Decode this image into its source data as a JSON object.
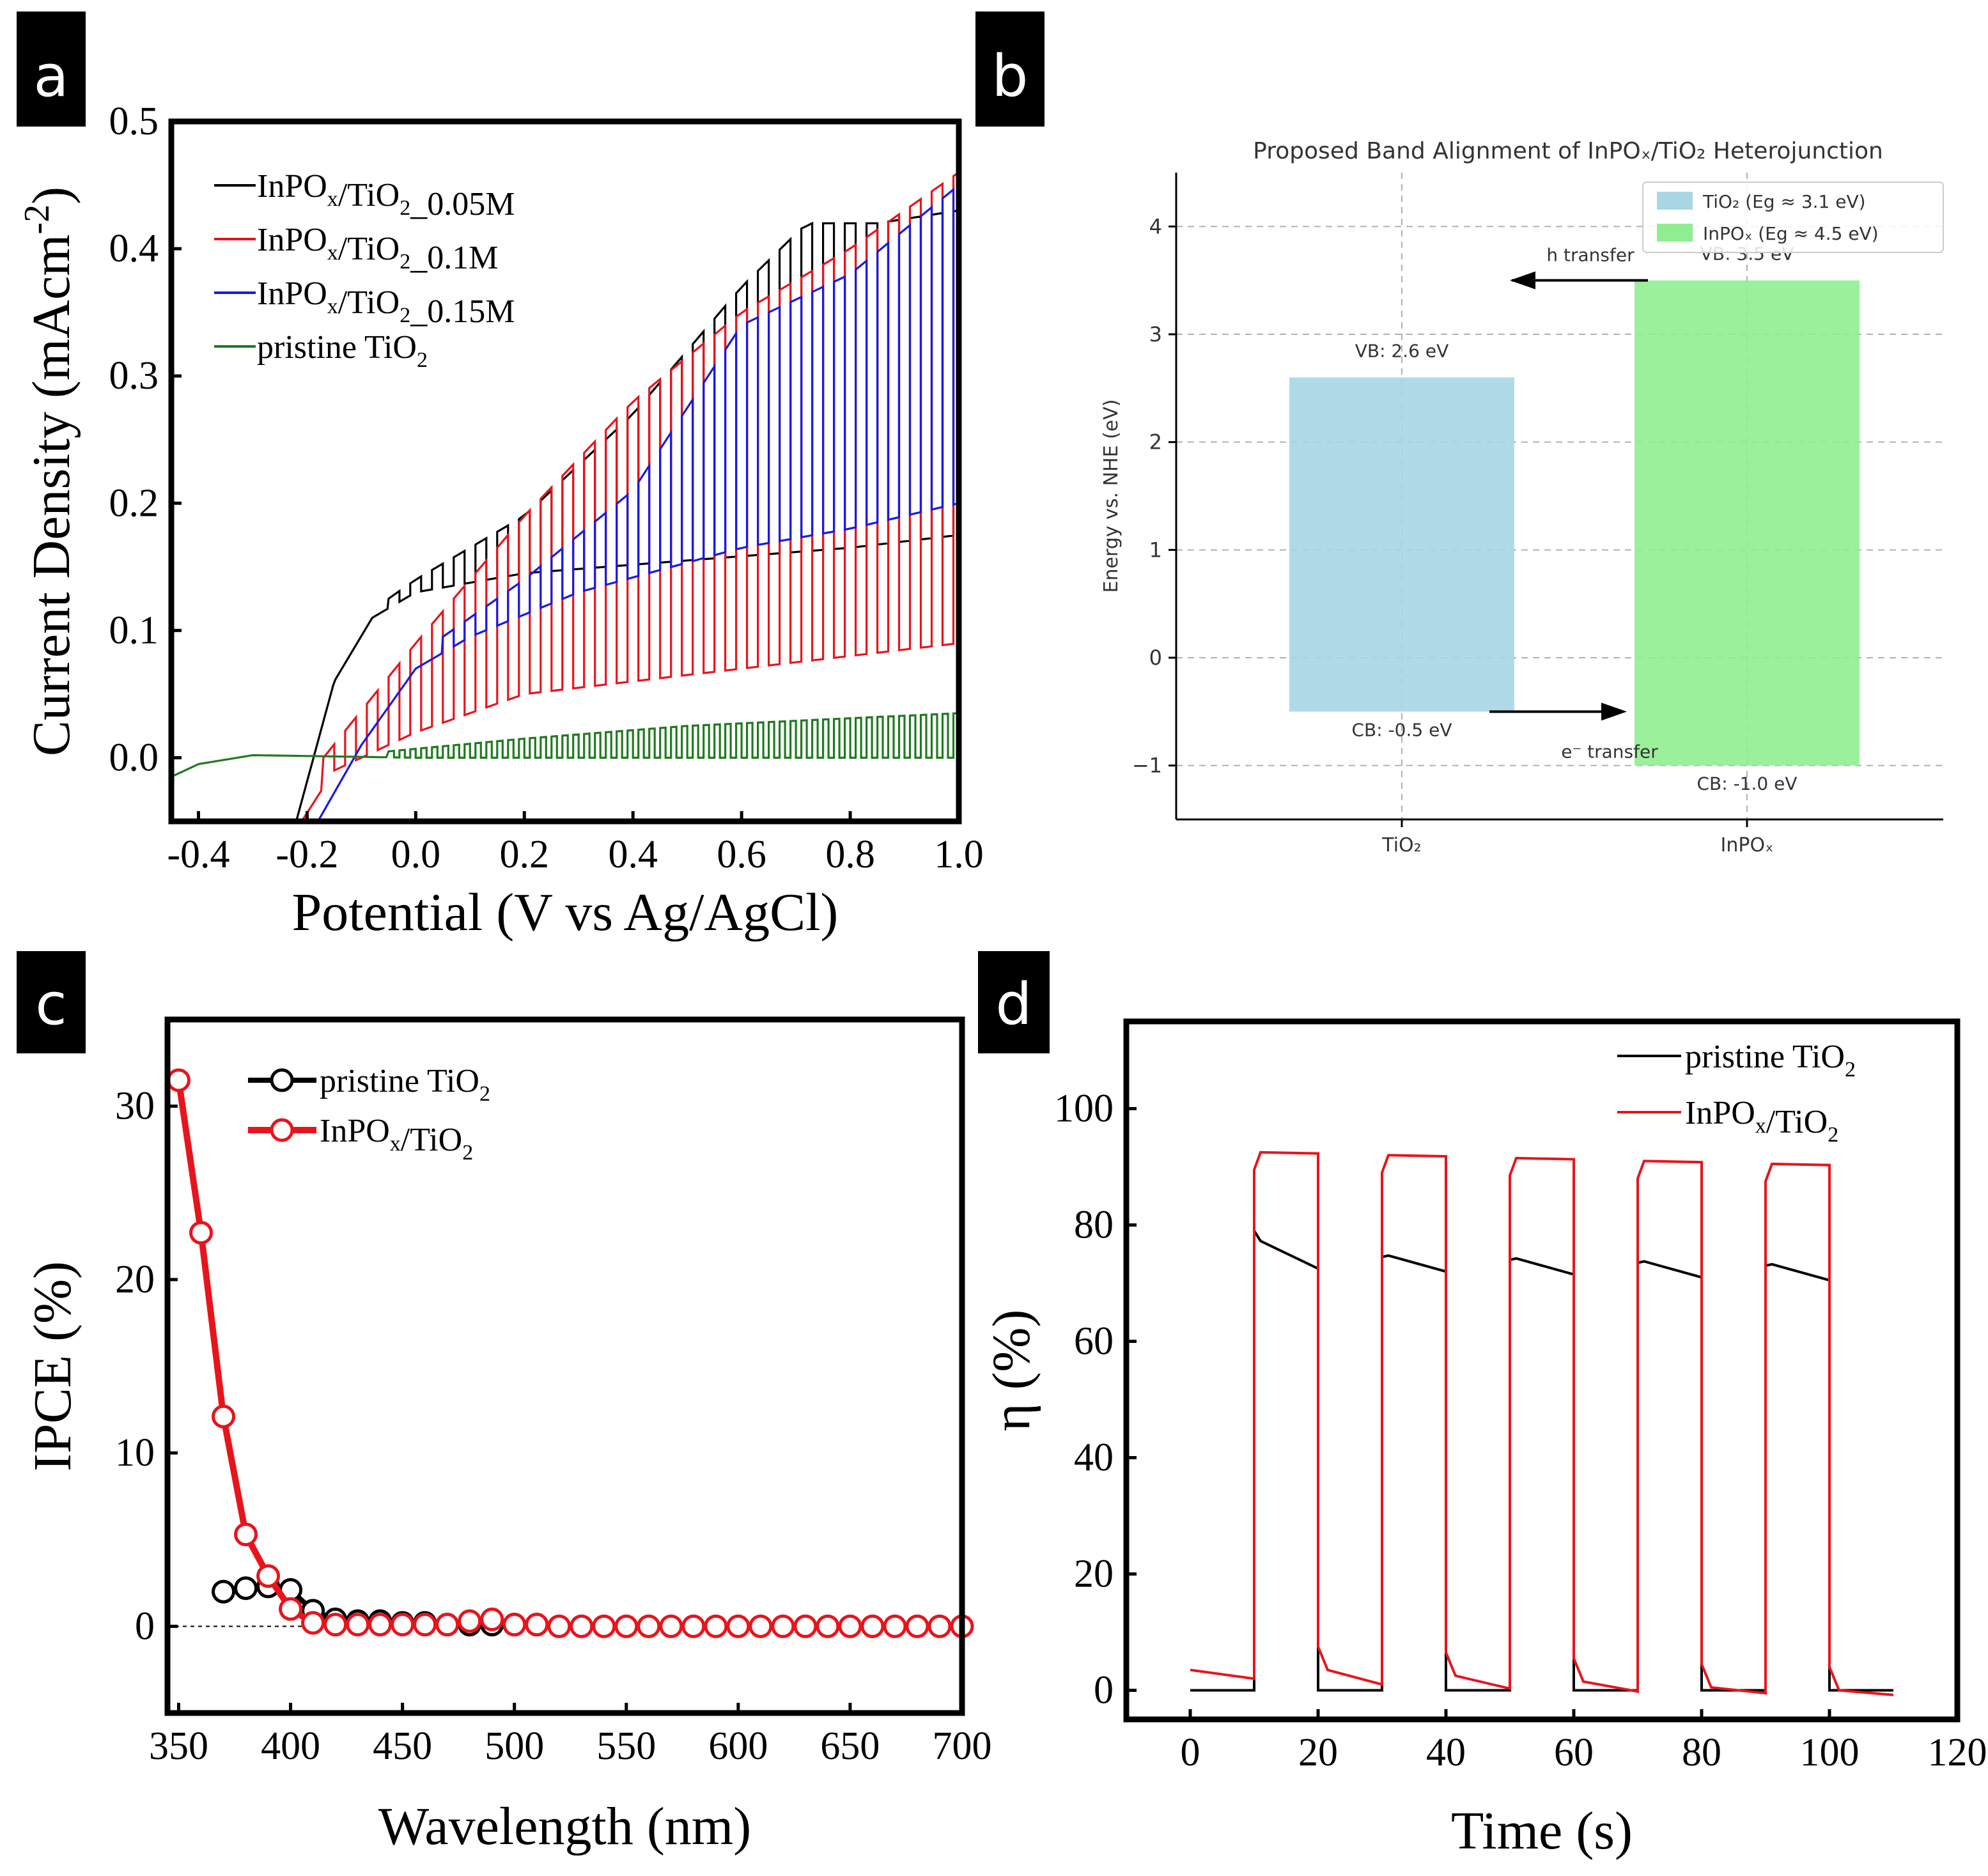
{
  "colors": {
    "black": "#000000",
    "red": "#e8141c",
    "blue": "#1a1ae0",
    "green": "#1f7a1f",
    "tio2_box": "#a9d6e5",
    "inpox_box": "#90ee90",
    "grid": "#b0b0b0",
    "panel_bg": "#ffffff"
  },
  "panel_labels": {
    "a": "a",
    "b": "b",
    "c": "c",
    "d": "d"
  },
  "chart_data": [
    {
      "panel": "a",
      "type": "line",
      "xlabel": "Potential (V vs Ag/AgCl)",
      "ylabel": "Current Density (mAcm",
      "ylabel_sup": "-2",
      "ylabel_close": ")",
      "xlim": [
        -0.45,
        1.0
      ],
      "ylim": [
        -0.05,
        0.5
      ],
      "xticks": [
        -0.4,
        -0.2,
        0.0,
        0.2,
        0.4,
        0.6,
        0.8,
        1.0
      ],
      "xtick_labels": [
        "-0.4",
        "-0.2",
        "0.0",
        "0.2",
        "0.4",
        "0.6",
        "0.8",
        "1.0"
      ],
      "yticks": [
        0.0,
        0.1,
        0.2,
        0.3,
        0.4,
        0.5
      ],
      "ytick_labels": [
        "0.0",
        "0.1",
        "0.2",
        "0.3",
        "0.4",
        "0.5"
      ],
      "legend_position": "top-left",
      "series": [
        {
          "name": "InPOx/TiO2_0.05M",
          "label_main": "InPO",
          "label_sub1": "x",
          "label_mid": "/TiO",
          "label_sub2": "2",
          "label_tail": "_0.05M",
          "color": "black",
          "chopped": true,
          "x_start": -0.22,
          "x_chop_start": -0.05,
          "x_end": 1.0,
          "chop_period": 0.04,
          "dark": [
            [
              -0.22,
              -0.05
            ],
            [
              -0.15,
              0.06
            ],
            [
              -0.08,
              0.11
            ],
            [
              0.0,
              0.13
            ],
            [
              0.2,
              0.145
            ],
            [
              0.5,
              0.155
            ],
            [
              0.8,
              0.165
            ],
            [
              1.0,
              0.175
            ]
          ],
          "light": [
            [
              -0.05,
              0.125
            ],
            [
              0.0,
              0.14
            ],
            [
              0.2,
              0.19
            ],
            [
              0.4,
              0.27
            ],
            [
              0.6,
              0.37
            ],
            [
              0.72,
              0.42
            ],
            [
              0.85,
              0.42
            ],
            [
              1.0,
              0.43
            ]
          ]
        },
        {
          "name": "InPOx/TiO2_0.1M",
          "label_main": "InPO",
          "label_sub1": "x",
          "label_mid": "/TiO",
          "label_sub2": "2",
          "label_tail": "_0.1M",
          "color": "red",
          "chopped": true,
          "x_start": -0.21,
          "x_chop_start": -0.17,
          "x_end": 1.0,
          "chop_period": 0.04,
          "dark": [
            [
              -0.21,
              -0.05
            ],
            [
              -0.15,
              -0.01
            ],
            [
              0.0,
              0.02
            ],
            [
              0.2,
              0.05
            ],
            [
              0.5,
              0.065
            ],
            [
              0.8,
              0.08
            ],
            [
              1.0,
              0.09
            ]
          ],
          "light": [
            [
              -0.17,
              0.0
            ],
            [
              0.0,
              0.09
            ],
            [
              0.2,
              0.19
            ],
            [
              0.4,
              0.28
            ],
            [
              0.6,
              0.35
            ],
            [
              0.8,
              0.4
            ],
            [
              1.0,
              0.46
            ]
          ]
        },
        {
          "name": "InPOx/TiO2_0.15M",
          "label_main": "InPO",
          "label_sub1": "x",
          "label_mid": "/TiO",
          "label_sub2": "2",
          "label_tail": "_0.15M",
          "color": "blue",
          "chopped": true,
          "x_start": -0.18,
          "x_chop_start": 0.05,
          "x_end": 1.0,
          "chop_period": 0.04,
          "dark": [
            [
              -0.18,
              -0.05
            ],
            [
              -0.1,
              0.01
            ],
            [
              0.0,
              0.07
            ],
            [
              0.1,
              0.095
            ],
            [
              0.3,
              0.13
            ],
            [
              0.6,
              0.165
            ],
            [
              0.8,
              0.18
            ],
            [
              1.0,
              0.2
            ]
          ],
          "light": [
            [
              0.05,
              0.095
            ],
            [
              0.2,
              0.14
            ],
            [
              0.4,
              0.21
            ],
            [
              0.6,
              0.34
            ],
            [
              0.8,
              0.38
            ],
            [
              1.0,
              0.45
            ]
          ]
        },
        {
          "name": "pristine TiO2",
          "label_main": "pristine TiO",
          "label_sub1": "",
          "label_mid": "",
          "label_sub2": "2",
          "label_tail": "",
          "color": "green",
          "chopped": true,
          "x_start": -0.45,
          "x_chop_start": -0.05,
          "x_end": 1.0,
          "chop_period": 0.02,
          "dark": [
            [
              -0.45,
              -0.015
            ],
            [
              -0.4,
              -0.005
            ],
            [
              -0.3,
              0.002
            ],
            [
              0.0,
              0.0
            ],
            [
              1.0,
              0.0
            ]
          ],
          "light": [
            [
              -0.05,
              0.005
            ],
            [
              0.2,
              0.015
            ],
            [
              0.5,
              0.025
            ],
            [
              1.0,
              0.035
            ]
          ]
        }
      ]
    },
    {
      "panel": "b",
      "type": "bar",
      "title": "Proposed Band Alignment of InPOₓ/TiO₂ Heterojunction",
      "xlabel": "",
      "ylabel": "Energy vs. NHE (eV)",
      "ylim": [
        -1.5,
        4.5
      ],
      "yticks": [
        -1,
        0,
        1,
        2,
        3,
        4
      ],
      "ytick_labels": [
        "−1",
        "0",
        "1",
        "2",
        "3",
        "4"
      ],
      "categories": [
        "TiO₂",
        "InPOₓ"
      ],
      "bands": [
        {
          "name": "TiO₂",
          "cb": -0.5,
          "vb": 2.6,
          "color": "tio2_box",
          "vb_label": "VB: 2.6 eV",
          "cb_label": "CB: -0.5 eV"
        },
        {
          "name": "InPOₓ",
          "cb": -1.0,
          "vb": 3.5,
          "color": "inpox_box",
          "vb_label": "VB: 3.5 eV",
          "cb_label": "CB: -1.0 eV"
        }
      ],
      "legend": [
        "TiO₂ (Eg ≈ 3.1 eV)",
        "InPOₓ (Eg ≈ 4.5 eV)"
      ],
      "legend_position": "top-right",
      "grid": true,
      "annotations": [
        {
          "text": "h  transfer",
          "from": "InPOₓ",
          "to": "TiO₂",
          "y": 3.5
        },
        {
          "text": "e⁻ transfer",
          "from": "TiO₂",
          "to": "InPOₓ",
          "y": -0.5
        }
      ]
    },
    {
      "panel": "c",
      "type": "scatter",
      "xlabel": "Wavelength (nm)",
      "ylabel": "IPCE (%)",
      "xlim": [
        345,
        700
      ],
      "ylim": [
        -5,
        35
      ],
      "xticks": [
        350,
        400,
        450,
        500,
        550,
        600,
        650,
        700
      ],
      "xtick_labels": [
        "350",
        "400",
        "450",
        "500",
        "550",
        "600",
        "650",
        "700"
      ],
      "yticks": [
        0,
        10,
        20,
        30
      ],
      "ytick_labels": [
        "0",
        "10",
        "20",
        "30"
      ],
      "zero_line": true,
      "legend_position": "top-left",
      "series": [
        {
          "name": "pristine TiO2",
          "label_main": "pristine TiO",
          "label_sub1": "",
          "label_mid": "",
          "label_sub2": "2",
          "color": "black",
          "x": [
            370,
            380,
            390,
            400,
            410,
            420,
            430,
            440,
            450,
            460,
            470,
            480,
            490,
            500,
            510
          ],
          "y": [
            2.0,
            2.2,
            2.3,
            2.1,
            0.9,
            0.4,
            0.3,
            0.3,
            0.2,
            0.2,
            0.1,
            0.1,
            0.1,
            0.1,
            0.1
          ]
        },
        {
          "name": "InPOx/TiO2",
          "label_main": "InPO",
          "label_sub1": "x",
          "label_mid": "/TiO",
          "label_sub2": "2",
          "color": "red",
          "x": [
            350,
            360,
            370,
            380,
            390,
            400,
            410,
            420,
            430,
            440,
            450,
            460,
            470,
            480,
            490,
            500,
            510,
            520,
            530,
            540,
            550,
            560,
            570,
            580,
            590,
            600,
            610,
            620,
            630,
            640,
            650,
            660,
            670,
            680,
            690,
            700
          ],
          "y": [
            31.5,
            22.7,
            12.1,
            5.3,
            2.9,
            1.0,
            0.2,
            0.1,
            0.1,
            0.1,
            0.1,
            0.1,
            0.1,
            0.3,
            0.4,
            0.1,
            0.1,
            0.0,
            0.0,
            0.0,
            0.0,
            0.0,
            0.0,
            0.0,
            0.0,
            0.0,
            0.0,
            0.0,
            0.0,
            0.0,
            0.0,
            0.0,
            0.0,
            0.0,
            0.0,
            0.0
          ]
        }
      ]
    },
    {
      "panel": "d",
      "type": "line",
      "xlabel": "Time (s)",
      "ylabel": "η (%)",
      "xlim": [
        -10,
        120
      ],
      "ylim": [
        -5,
        115
      ],
      "xticks": [
        0,
        20,
        40,
        60,
        80,
        100,
        120
      ],
      "xtick_labels": [
        "0",
        "20",
        "40",
        "60",
        "80",
        "100",
        "120"
      ],
      "yticks": [
        0,
        20,
        40,
        60,
        80,
        100
      ],
      "ytick_labels": [
        "0",
        "20",
        "40",
        "60",
        "80",
        "100"
      ],
      "legend_position": "top-right",
      "series": [
        {
          "name": "pristine TiO2",
          "label_main": "pristine TiO",
          "label_sub1": "",
          "label_mid": "",
          "label_sub2": "2",
          "color": "black",
          "on_intervals": [
            [
              10,
              20
            ],
            [
              30,
              40
            ],
            [
              50,
              60
            ],
            [
              70,
              80
            ],
            [
              90,
              100
            ]
          ],
          "on_start": [
            79,
            74.5,
            74,
            73.5,
            73
          ],
          "on_end": [
            72.5,
            72,
            71.5,
            71,
            70.5
          ],
          "off_level": [
            0,
            0,
            0,
            0,
            0,
            0
          ]
        },
        {
          "name": "InPOx/TiO2",
          "label_main": "InPO",
          "label_sub1": "x",
          "label_mid": "/TiO",
          "label_sub2": "2",
          "color": "red",
          "on_intervals": [
            [
              10,
              20
            ],
            [
              30,
              40
            ],
            [
              50,
              60
            ],
            [
              70,
              80
            ],
            [
              90,
              100
            ]
          ],
          "on_start": [
            92.5,
            92,
            91.5,
            91,
            90.5
          ],
          "on_end": [
            92.3,
            91.8,
            91.3,
            90.8,
            90.3
          ],
          "off_start": [
            3.5,
            3.5,
            2.5,
            1.5,
            0.5,
            0.0
          ],
          "off_end": [
            2.0,
            1.0,
            0.3,
            -0.2,
            -0.5,
            -0.8
          ]
        }
      ]
    }
  ]
}
